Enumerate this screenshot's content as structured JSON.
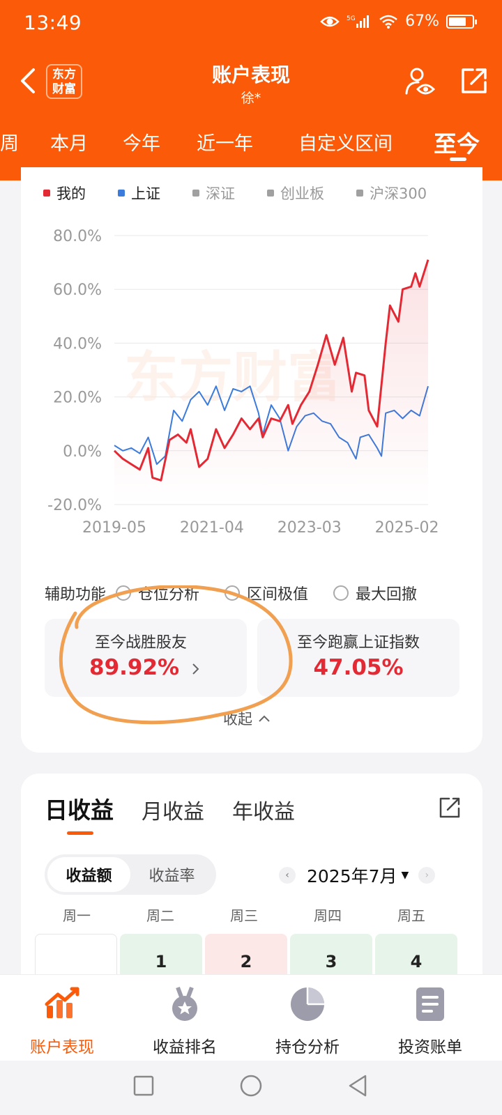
{
  "status_bar": {
    "time": "13:49",
    "network": "5G",
    "battery": "67%"
  },
  "nav": {
    "title": "账户表现",
    "subtitle": "徐*",
    "brand_logo": "东方\n财富"
  },
  "period_tabs": [
    {
      "label": "周"
    },
    {
      "label": "本月"
    },
    {
      "label": "今年"
    },
    {
      "label": "近一年"
    },
    {
      "label": "自定义区间"
    },
    {
      "label": "至今",
      "active": true
    }
  ],
  "legend": [
    {
      "label": "我的",
      "color": "#e32a34",
      "active": true
    },
    {
      "label": "上证",
      "color": "#3a7bdc",
      "active": true
    },
    {
      "label": "深证",
      "color": "#a0a0a0",
      "active": false
    },
    {
      "label": "创业板",
      "color": "#a0a0a0",
      "active": false
    },
    {
      "label": "沪深300",
      "color": "#a0a0a0",
      "active": false
    }
  ],
  "watermark": "东方财富",
  "chart_data": {
    "type": "line",
    "x_tick_labels": [
      "2019-05",
      "2021-04",
      "2023-03",
      "2025-02"
    ],
    "y_tick_labels": [
      "80.0%",
      "60.0%",
      "40.0%",
      "20.0%",
      "0.0%",
      "-20.0%"
    ],
    "ylim": [
      -20,
      80
    ],
    "x_range": [
      "2019-05",
      "2025-07"
    ],
    "grid": true,
    "series": [
      {
        "name": "我的",
        "color": "#e32a34",
        "filled": true,
        "points": [
          [
            "2019-05",
            0
          ],
          [
            "2019-07",
            -3
          ],
          [
            "2019-09",
            -5
          ],
          [
            "2019-11",
            -7
          ],
          [
            "2020-01",
            1
          ],
          [
            "2020-02",
            -10
          ],
          [
            "2020-04",
            -11
          ],
          [
            "2020-06",
            4
          ],
          [
            "2020-08",
            6
          ],
          [
            "2020-10",
            3
          ],
          [
            "2020-11",
            8
          ],
          [
            "2021-01",
            -6
          ],
          [
            "2021-03",
            -3
          ],
          [
            "2021-05",
            8
          ],
          [
            "2021-07",
            1
          ],
          [
            "2021-09",
            6
          ],
          [
            "2021-11",
            12
          ],
          [
            "2022-01",
            8
          ],
          [
            "2022-03",
            12
          ],
          [
            "2022-04",
            5
          ],
          [
            "2022-06",
            12
          ],
          [
            "2022-08",
            11
          ],
          [
            "2022-10",
            17
          ],
          [
            "2022-11",
            10
          ],
          [
            "2023-01",
            17
          ],
          [
            "2023-03",
            22
          ],
          [
            "2023-05",
            32
          ],
          [
            "2023-07",
            43
          ],
          [
            "2023-09",
            32
          ],
          [
            "2023-11",
            42
          ],
          [
            "2024-01",
            22
          ],
          [
            "2024-02",
            29
          ],
          [
            "2024-04",
            28
          ],
          [
            "2024-05",
            15
          ],
          [
            "2024-07",
            9
          ],
          [
            "2024-09",
            40
          ],
          [
            "2024-10",
            54
          ],
          [
            "2024-12",
            48
          ],
          [
            "2025-01",
            60
          ],
          [
            "2025-03",
            61
          ],
          [
            "2025-04",
            66
          ],
          [
            "2025-05",
            61
          ],
          [
            "2025-07",
            71
          ]
        ]
      },
      {
        "name": "上证",
        "color": "#3a7bdc",
        "filled": false,
        "points": [
          [
            "2019-05",
            2
          ],
          [
            "2019-07",
            0
          ],
          [
            "2019-09",
            1
          ],
          [
            "2019-11",
            -1
          ],
          [
            "2020-01",
            5
          ],
          [
            "2020-03",
            -5
          ],
          [
            "2020-05",
            -2
          ],
          [
            "2020-07",
            15
          ],
          [
            "2020-09",
            11
          ],
          [
            "2020-11",
            19
          ],
          [
            "2021-01",
            22
          ],
          [
            "2021-03",
            17
          ],
          [
            "2021-05",
            24
          ],
          [
            "2021-07",
            15
          ],
          [
            "2021-09",
            23
          ],
          [
            "2021-11",
            22
          ],
          [
            "2022-01",
            24
          ],
          [
            "2022-03",
            14
          ],
          [
            "2022-04",
            6
          ],
          [
            "2022-06",
            17
          ],
          [
            "2022-08",
            12
          ],
          [
            "2022-10",
            0
          ],
          [
            "2022-12",
            9
          ],
          [
            "2023-02",
            13
          ],
          [
            "2023-04",
            14
          ],
          [
            "2023-06",
            11
          ],
          [
            "2023-08",
            10
          ],
          [
            "2023-10",
            5
          ],
          [
            "2023-12",
            3
          ],
          [
            "2024-02",
            -3
          ],
          [
            "2024-03",
            5
          ],
          [
            "2024-05",
            6
          ],
          [
            "2024-07",
            1
          ],
          [
            "2024-08",
            -2
          ],
          [
            "2024-09",
            14
          ],
          [
            "2024-11",
            15
          ],
          [
            "2025-01",
            12
          ],
          [
            "2025-03",
            15
          ],
          [
            "2025-05",
            13
          ],
          [
            "2025-07",
            24
          ]
        ]
      }
    ]
  },
  "aux": {
    "label": "辅助功能",
    "options": [
      "仓位分析",
      "区间极值",
      "最大回撤"
    ]
  },
  "stats": {
    "beat_friends_label": "至今战胜股友",
    "beat_friends_value": "89.92%",
    "beat_index_label": "至今跑赢上证指数",
    "beat_index_value": "47.05%"
  },
  "collapse_label": "收起",
  "returns": {
    "tabs": [
      "日收益",
      "月收益",
      "年收益"
    ],
    "active_tab": "日收益",
    "segments": [
      "收益额",
      "收益率"
    ],
    "active_segment": "收益额",
    "month": "2025年7月",
    "weekdays": [
      "周一",
      "周二",
      "周三",
      "周四",
      "周五"
    ],
    "calendar_cells": [
      {
        "day": "",
        "color": "#ffffff"
      },
      {
        "day": "1",
        "color": "#e6f4ea"
      },
      {
        "day": "2",
        "color": "#fde8e8"
      },
      {
        "day": "3",
        "color": "#e6f4ea"
      },
      {
        "day": "4",
        "color": "#e6f4ea"
      }
    ]
  },
  "bottom_nav": [
    {
      "label": "账户表现",
      "icon": "chart-trend-icon",
      "active": true
    },
    {
      "label": "收益排名",
      "icon": "medal-icon",
      "active": false
    },
    {
      "label": "持仓分析",
      "icon": "pie-chart-icon",
      "active": false
    },
    {
      "label": "投资账单",
      "icon": "bill-icon",
      "active": false
    }
  ],
  "colors": {
    "brand": "#fb5b08",
    "mine": "#e32a34",
    "sse": "#3a7bdc",
    "annotation": "#f0a050"
  }
}
